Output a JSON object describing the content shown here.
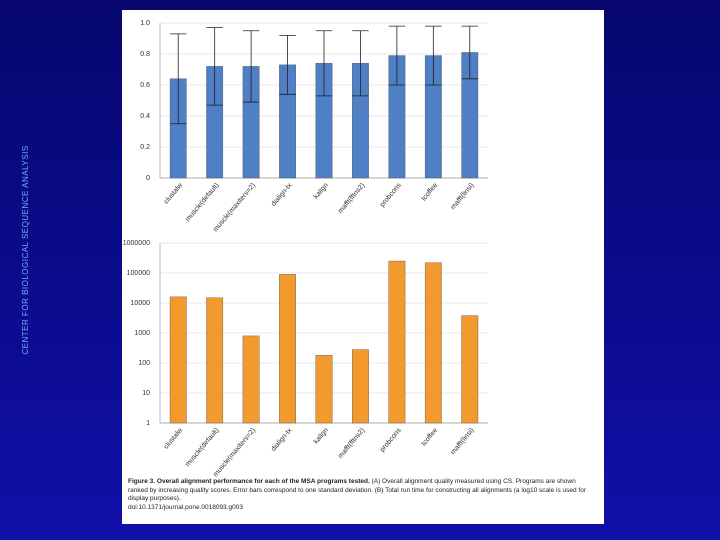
{
  "side_label": "CENTER FOR BIOLOGICAL SEQUENCE ANALYSIS",
  "caption": {
    "title": "Figure 3. Overall alignment performance for each of the MSA programs tested.",
    "text": "(A) Overall alignment quality measured using CS. Programs are shown ranked by increasing quality scores. Error bars correspond to one standard deviation. (B) Total run time for constructing all alignments (a log10 scale is used for display purposes).",
    "doi": "doi:10.1371/journal.pone.0018093.g003"
  },
  "chart_data": [
    {
      "type": "bar",
      "color": "#4f7fc4",
      "error_color": "#222222",
      "grid": true,
      "log_scale": false,
      "categories": [
        "clustalw",
        "muscle(default)",
        "muscle(maxiters=2)",
        "dialign-tx",
        "kalign",
        "mafft(fftns2)",
        "probcons",
        "tcoffee",
        "mafft(linsi)"
      ],
      "values": [
        0.64,
        0.72,
        0.72,
        0.73,
        0.74,
        0.74,
        0.79,
        0.79,
        0.81
      ],
      "errors": [
        0.29,
        0.25,
        0.23,
        0.19,
        0.21,
        0.21,
        0.19,
        0.19,
        0.17
      ],
      "ylim": [
        0,
        1
      ],
      "yticks": [
        0,
        0.2,
        0.4,
        0.6,
        0.8,
        {
          "value": 1,
          "label": "1.0"
        }
      ]
    },
    {
      "type": "bar",
      "color": "#f39a2f",
      "grid": true,
      "log_scale": true,
      "categories": [
        "clustalw",
        "muscle(default)",
        "muscle(maxiters=2)",
        "dialign-tx",
        "kalign",
        "mafft(fftns2)",
        "probcons",
        "tcoffee",
        "mafft(linsi)"
      ],
      "values": [
        16000,
        15000,
        800,
        90000,
        180,
        280,
        250000,
        220000,
        3800
      ],
      "ylim": [
        1,
        1000000
      ],
      "yticks": [
        1,
        10,
        100,
        1000,
        10000,
        100000,
        1000000
      ]
    }
  ]
}
